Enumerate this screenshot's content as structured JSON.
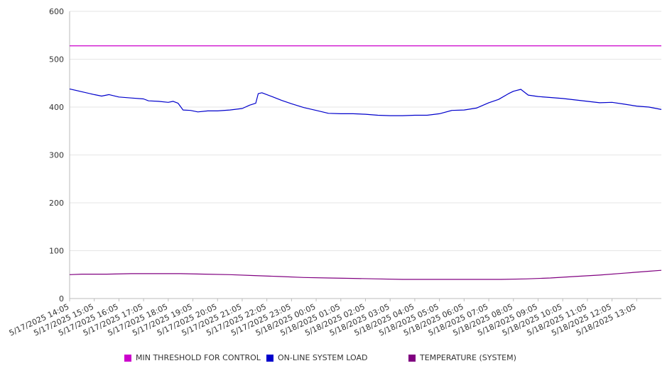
{
  "chart_data": {
    "type": "line",
    "title": "",
    "xlabel": "",
    "ylabel": "",
    "ylim": [
      0,
      600
    ],
    "y_ticks": [
      0,
      100,
      200,
      300,
      400,
      500,
      600
    ],
    "grid": "horizontal",
    "legend_position": "bottom",
    "x_tick_labels": [
      "5/17/2025 14:05",
      "5/17/2025 15:05",
      "5/17/2025 16:05",
      "5/17/2025 17:05",
      "5/17/2025 18:05",
      "5/17/2025 19:05",
      "5/17/2025 20:05",
      "5/17/2025 21:05",
      "5/17/2025 22:05",
      "5/17/2025 23:05",
      "5/18/2025 00:05",
      "5/18/2025 01:05",
      "5/18/2025 02:05",
      "5/18/2025 03:05",
      "5/18/2025 04:05",
      "5/18/2025 05:05",
      "5/18/2025 06:05",
      "5/18/2025 07:05",
      "5/18/2025 08:05",
      "5/18/2025 09:05",
      "5/18/2025 10:05",
      "5/18/2025 11:05",
      "5/18/2025 12:05",
      "5/18/2025 13:05"
    ],
    "x_range": [
      0,
      24
    ],
    "series": [
      {
        "name": "MIN THRESHOLD FOR CONTROL",
        "color": "#cc00cc",
        "x": [
          0,
          24
        ],
        "values": [
          528,
          528
        ]
      },
      {
        "name": "ON-LINE SYSTEM LOAD",
        "color": "#0000cc",
        "x": [
          0,
          0.5,
          1.0,
          1.3,
          1.6,
          2.0,
          2.5,
          3.0,
          3.2,
          3.6,
          4.0,
          4.2,
          4.4,
          4.6,
          4.9,
          5.2,
          5.6,
          6.0,
          6.5,
          7.0,
          7.3,
          7.55,
          7.65,
          7.8,
          8.2,
          8.6,
          9.0,
          9.5,
          10.0,
          10.5,
          11.0,
          11.5,
          12.0,
          12.5,
          13.0,
          13.5,
          14.0,
          14.5,
          15.0,
          15.5,
          16.0,
          16.5,
          17.0,
          17.4,
          17.8,
          18.0,
          18.3,
          18.6,
          19.0,
          19.5,
          20.0,
          20.5,
          21.0,
          21.5,
          22.0,
          22.5,
          23.0,
          23.5,
          24.0
        ],
        "values": [
          438,
          432,
          426,
          423,
          426,
          421,
          419,
          417,
          413,
          412,
          410,
          412,
          408,
          394,
          393,
          390,
          392,
          392,
          394,
          397,
          404,
          408,
          428,
          430,
          422,
          414,
          407,
          399,
          393,
          387,
          386,
          386,
          385,
          383,
          382,
          382,
          383,
          383,
          386,
          393,
          394,
          398,
          409,
          416,
          428,
          433,
          437,
          425,
          422,
          420,
          418,
          415,
          412,
          409,
          410,
          406,
          402,
          400,
          395
        ]
      },
      {
        "name": "TEMPERATURE (SYSTEM)",
        "color": "#800080",
        "x": [
          0,
          0.5,
          1.5,
          2.5,
          3.5,
          4.5,
          5.5,
          6.5,
          7.5,
          8.5,
          9.5,
          10.5,
          11.5,
          12.5,
          13.5,
          14.5,
          15.5,
          16.5,
          17.5,
          18.5,
          19.5,
          20.5,
          21.5,
          22.5,
          23.5,
          24.0
        ],
        "values": [
          50,
          51,
          51,
          52,
          52,
          52,
          51,
          50,
          48,
          46,
          44,
          43,
          42,
          41,
          40,
          40,
          40,
          40,
          40,
          41,
          43,
          46,
          49,
          53,
          57,
          59
        ]
      }
    ]
  }
}
